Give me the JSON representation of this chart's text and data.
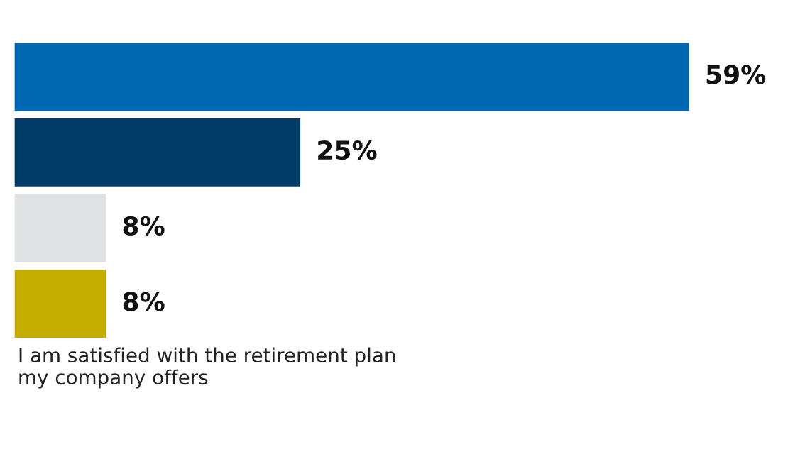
{
  "chart_data": {
    "type": "bar",
    "orientation": "horizontal",
    "categories": [
      null,
      null,
      null,
      null
    ],
    "values": [
      59,
      25,
      8,
      8
    ],
    "colors": [
      "#0068b3",
      "#003a66",
      "#e0e1e3",
      "#c4ad00"
    ],
    "value_labels": [
      "59%",
      "25%",
      "8%",
      "8%"
    ],
    "annotations": [
      "I am satisfied with the retirement plan\nmy company offers"
    ]
  }
}
